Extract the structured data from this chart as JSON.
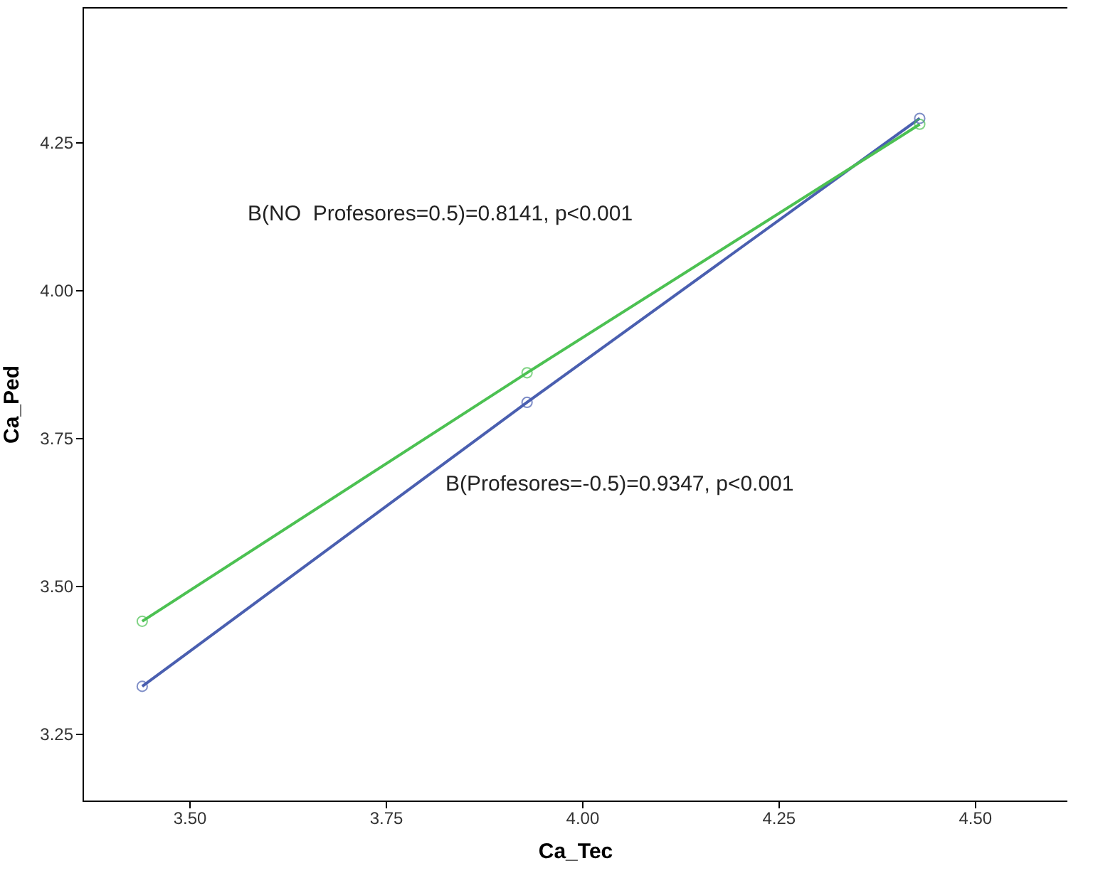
{
  "chart_data": {
    "type": "line",
    "xlabel": "Ca_Tec",
    "ylabel": "Ca_Ped",
    "marker": "circle",
    "grid": false,
    "xlim": [
      3.364,
      4.618
    ],
    "xticks": [
      {
        "value": 3.5,
        "label": "3.50"
      },
      {
        "value": 3.75,
        "label": "3.75"
      },
      {
        "value": 4.0,
        "label": "4.00"
      },
      {
        "value": 4.25,
        "label": "4.25"
      },
      {
        "value": 4.5,
        "label": "4.50"
      }
    ],
    "ylim": [
      3.137,
      4.478
    ],
    "yticks": [
      {
        "value": 3.25,
        "label": "3.25"
      },
      {
        "value": 3.5,
        "label": "3.50"
      },
      {
        "value": 3.75,
        "label": "3.75"
      },
      {
        "value": 4.0,
        "label": "4.00"
      },
      {
        "value": 4.25,
        "label": "4.25"
      }
    ],
    "series": [
      {
        "color": "#4a5fb0",
        "x": [
          3.44,
          3.93,
          4.43
        ],
        "values": [
          3.33,
          3.81,
          4.29
        ]
      },
      {
        "color": "#4cc152",
        "x": [
          3.44,
          3.93,
          4.43
        ],
        "values": [
          3.44,
          3.86,
          4.28
        ]
      }
    ],
    "annotations": [
      "B(NO  Profesores=0.5)=0.8141, p<0.001",
      "B(Profesores=-0.5)=0.9347, p<0.001"
    ]
  }
}
